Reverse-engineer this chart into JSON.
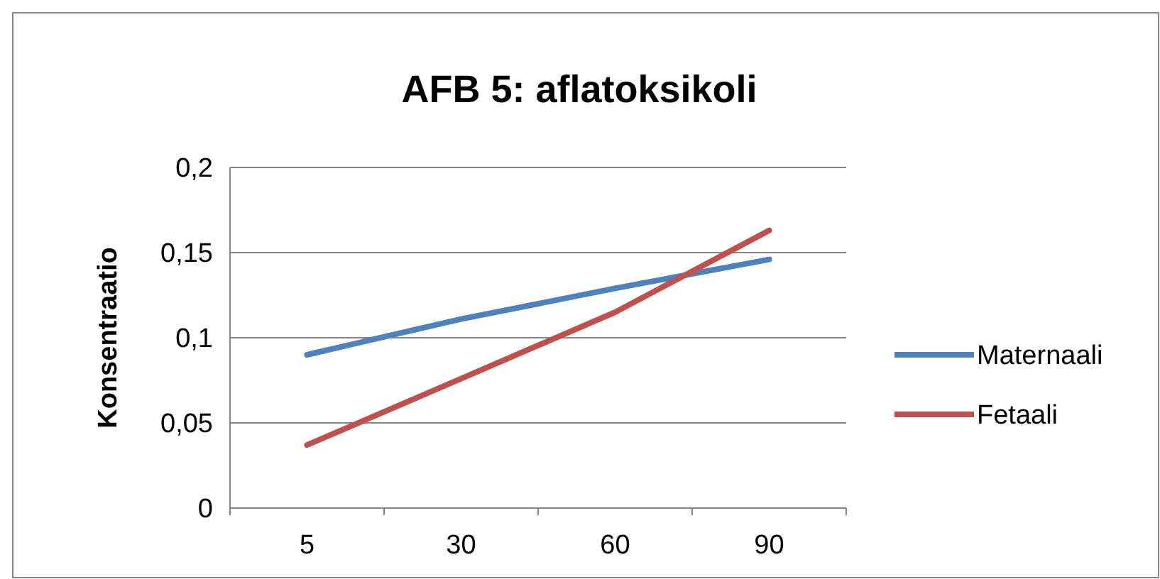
{
  "chart_data": {
    "type": "line",
    "title": "AFB 5: aflatoksikoli",
    "ylabel": "Konsentraatio",
    "categories": [
      "5",
      "30",
      "60",
      "90"
    ],
    "series": [
      {
        "name": "Maternaali",
        "color": "#4f81bd",
        "values": [
          0.09,
          0.111,
          0.129,
          0.146
        ]
      },
      {
        "name": "Fetaali",
        "color": "#c0504d",
        "values": [
          0.037,
          0.076,
          0.115,
          0.163
        ]
      }
    ],
    "ylim": [
      0,
      0.2
    ],
    "yticks": [
      {
        "value": 0,
        "label": "0"
      },
      {
        "value": 0.05,
        "label": "0,05"
      },
      {
        "value": 0.1,
        "label": "0,1"
      },
      {
        "value": 0.15,
        "label": "0,15"
      },
      {
        "value": 0.2,
        "label": "0,2"
      }
    ],
    "grid": "y",
    "legend": "right",
    "marker": "none",
    "line_style": "solid"
  }
}
